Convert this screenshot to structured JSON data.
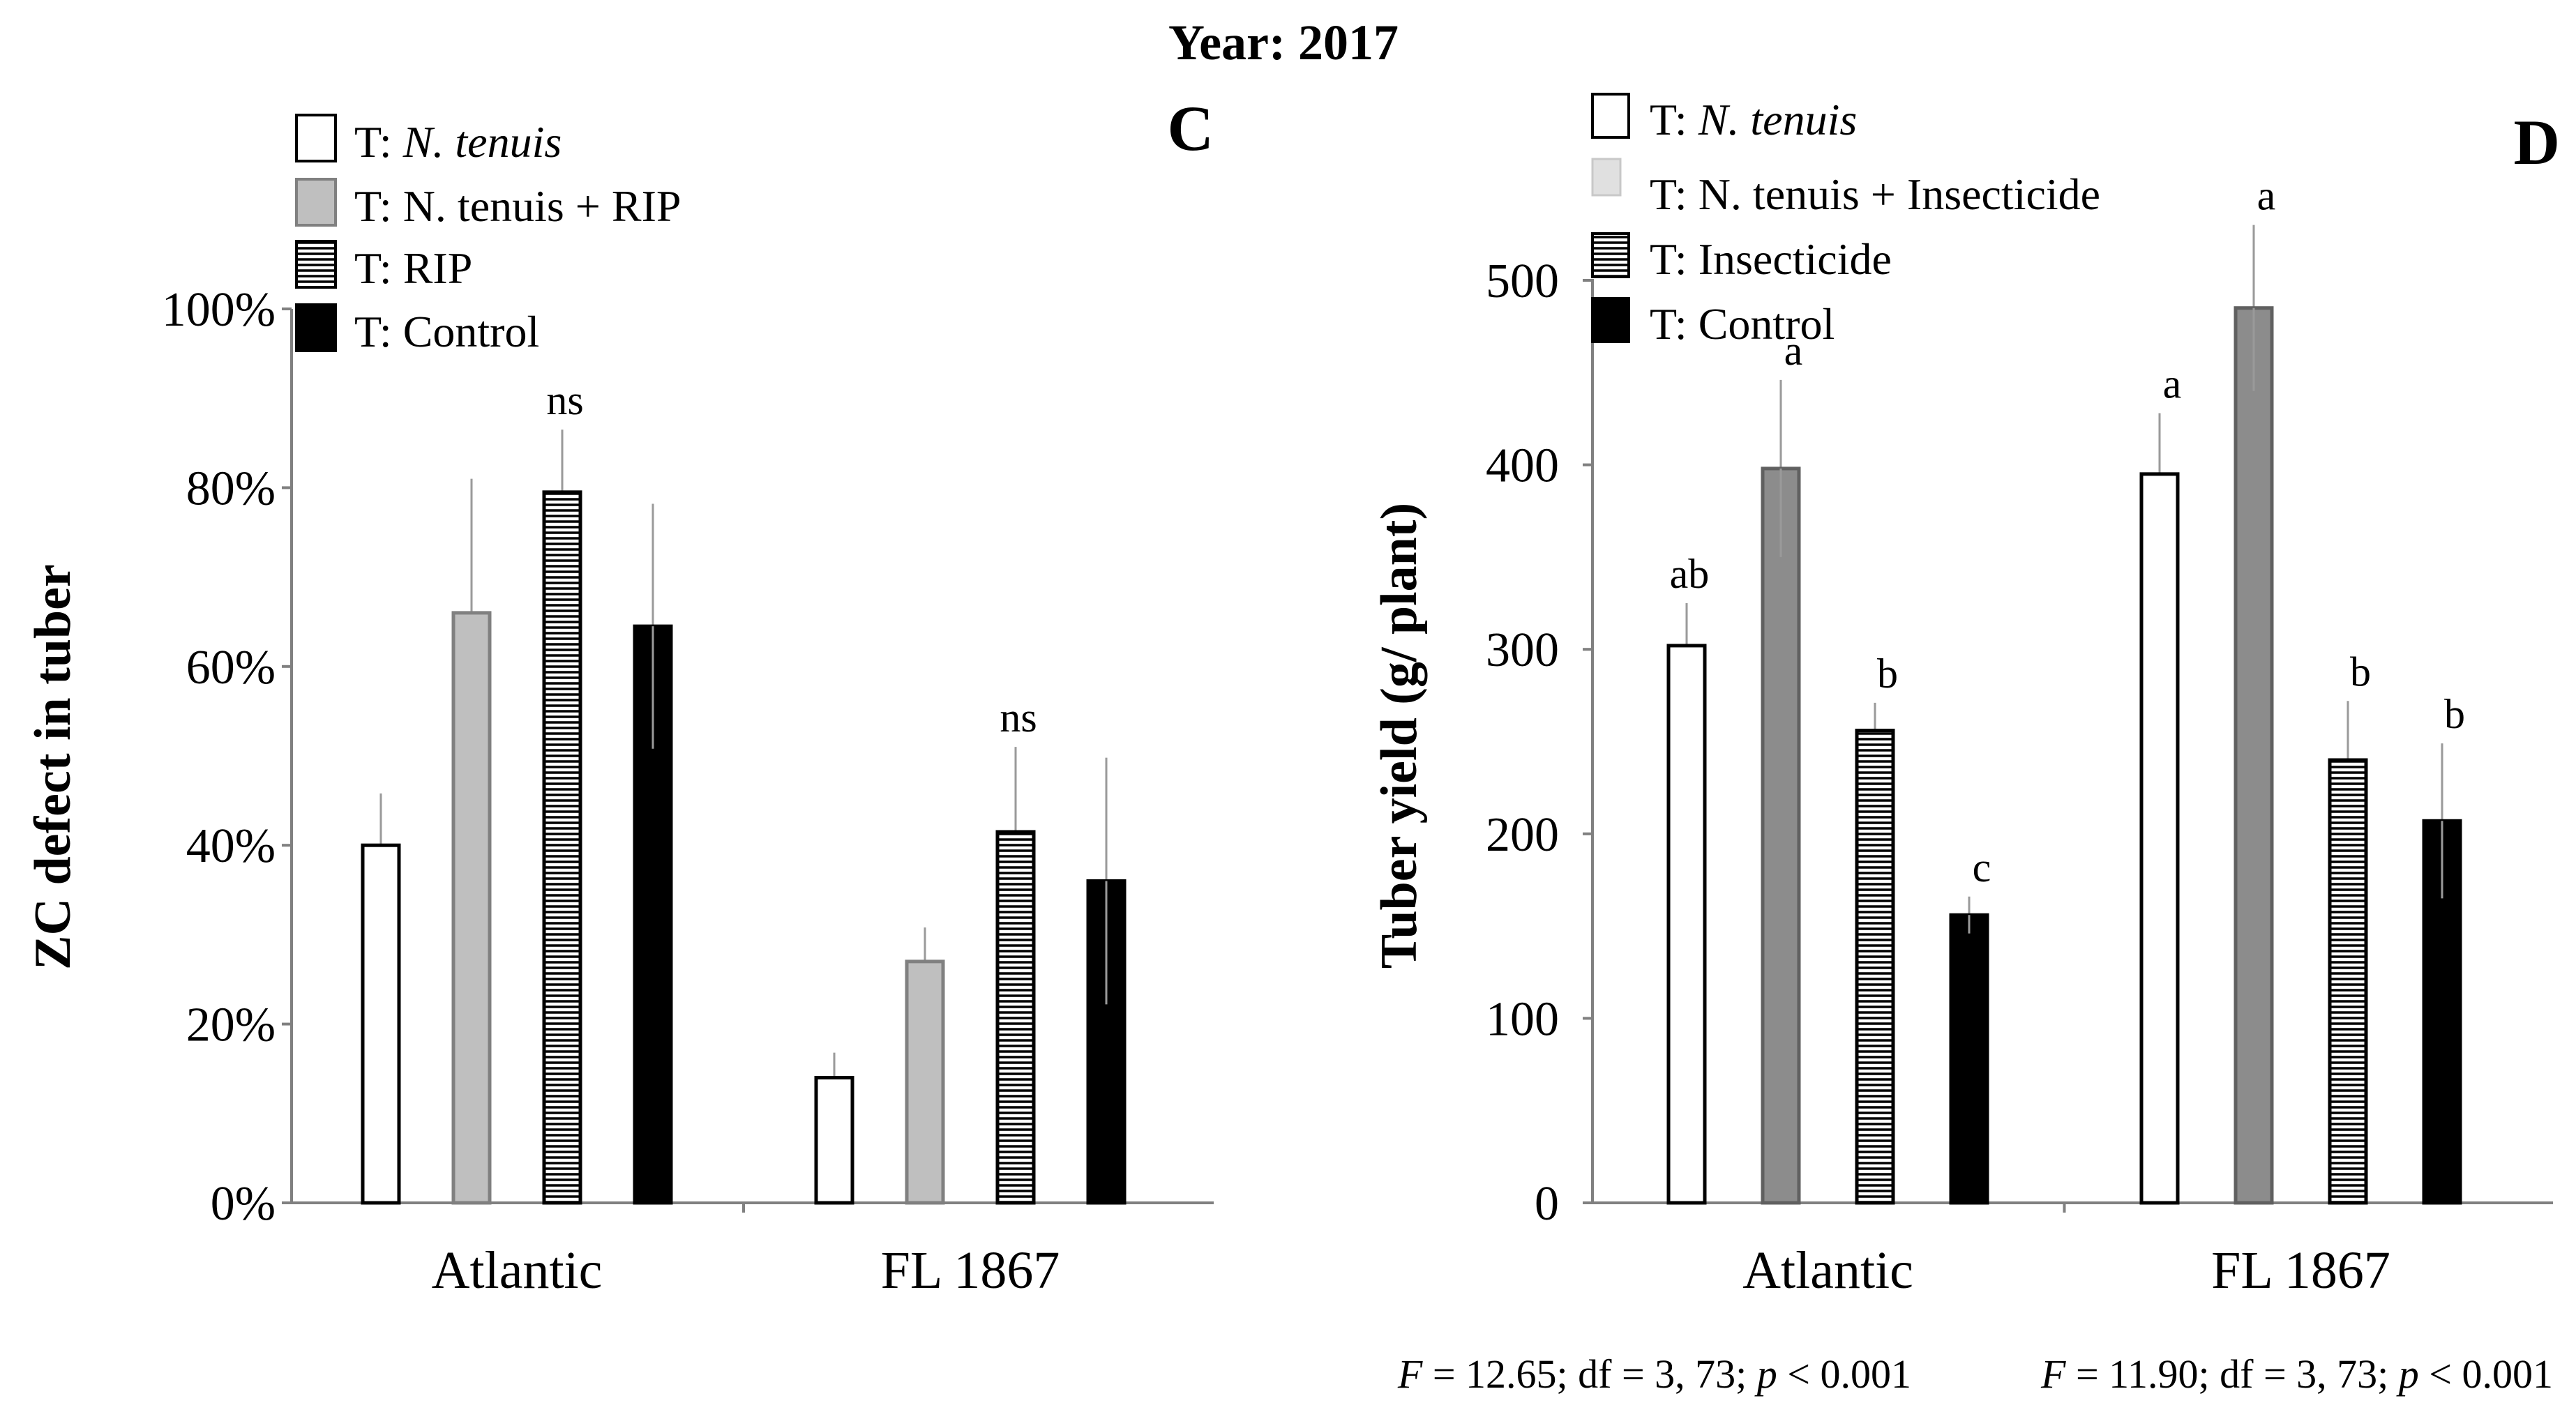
{
  "figure_title": "Year: 2017",
  "legend_prefix": "T: ",
  "chart_data": [
    {
      "type": "bar",
      "panel": "C",
      "title": "",
      "ylabel": "ZC defect in tuber",
      "xlabel": "",
      "ylim": [
        0,
        100
      ],
      "yticks": [
        "0%",
        "20%",
        "40%",
        "60%",
        "80%",
        "100%"
      ],
      "categories": [
        "Atlantic",
        "FL 1867"
      ],
      "series": [
        {
          "name": "N. tenuis",
          "fill": "white",
          "values": [
            40,
            14
          ],
          "errors": [
            5.8,
            2.8
          ],
          "letters": [
            "",
            ""
          ]
        },
        {
          "name": "N. tenuis + RIP",
          "fill": "lightgray",
          "values": [
            66,
            27
          ],
          "errors": [
            15,
            3.8
          ],
          "letters": [
            "",
            ""
          ]
        },
        {
          "name": "RIP",
          "fill": "hatch",
          "values": [
            79.5,
            41.5
          ],
          "errors": [
            7,
            9.5
          ],
          "letters": [
            "ns",
            "ns"
          ]
        },
        {
          "name": "Control",
          "fill": "black",
          "values": [
            64.5,
            36
          ],
          "errors": [
            13.7,
            13.8
          ],
          "letters": [
            "",
            ""
          ]
        }
      ],
      "stats": {
        "F_label": "F",
        "text": " = 12.65; df = 3, 73; ",
        "p_label": "p",
        "p_text": " < 0.001"
      }
    },
    {
      "type": "bar",
      "panel": "D",
      "title": "",
      "ylabel": "Tuber yield (g/ plant)",
      "xlabel": "",
      "ylim": [
        0,
        500
      ],
      "yticks": [
        "0",
        "100",
        "200",
        "300",
        "400",
        "500"
      ],
      "categories": [
        "Atlantic",
        "FL 1867"
      ],
      "series": [
        {
          "name": "N. tenuis",
          "fill": "white",
          "values": [
            302,
            395
          ],
          "errors": [
            23,
            33
          ],
          "letters": [
            "ab",
            "a"
          ]
        },
        {
          "name": "N. tenuis + Insecticide",
          "fill": "gray",
          "values": [
            398,
            485
          ],
          "errors": [
            48,
            45
          ],
          "letters": [
            "a",
            "a"
          ]
        },
        {
          "name": "Insecticide",
          "fill": "hatch",
          "values": [
            256,
            240
          ],
          "errors": [
            15,
            32
          ],
          "letters": [
            "b",
            "b"
          ]
        },
        {
          "name": "Control",
          "fill": "black",
          "values": [
            156,
            207
          ],
          "errors": [
            10,
            42
          ],
          "letters": [
            "c",
            "b"
          ]
        }
      ],
      "stats": {
        "F_label": "F",
        "text": " = 11.90; df = 3, 73; ",
        "p_label": "p",
        "p_text": " < 0.001"
      }
    }
  ]
}
